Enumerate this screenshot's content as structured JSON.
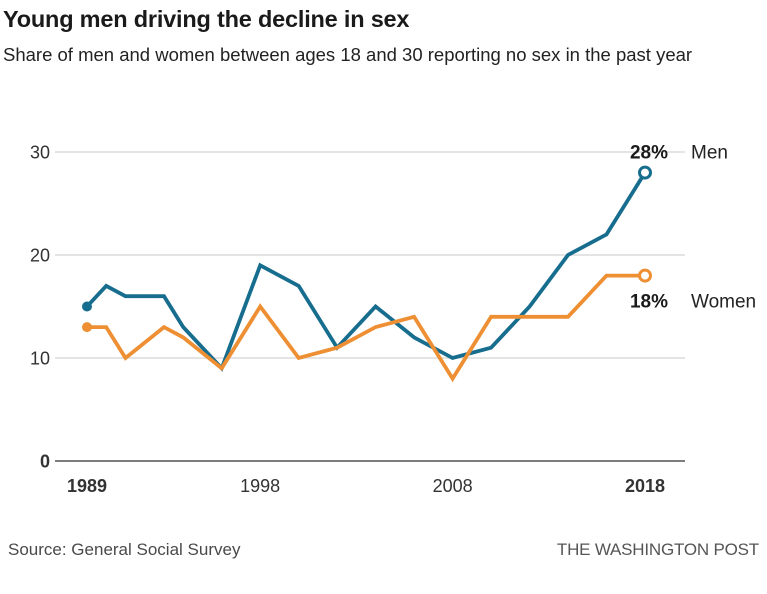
{
  "header": {
    "title": "Young men driving the decline in sex",
    "subtitle": "Share of men and women between ages 18 and 30 reporting no sex in the past year"
  },
  "chart_data": {
    "type": "line",
    "x": [
      1989,
      1990,
      1991,
      1993,
      1994,
      1996,
      1998,
      2000,
      2002,
      2004,
      2006,
      2008,
      2010,
      2012,
      2014,
      2016,
      2018
    ],
    "series": [
      {
        "name": "Men",
        "color": "#176d8e",
        "values": [
          15,
          17,
          16,
          16,
          13,
          9,
          19,
          17,
          11,
          15,
          12,
          10,
          11,
          15,
          20,
          22,
          28
        ],
        "end_label": "28%"
      },
      {
        "name": "Women",
        "color": "#ee8f33",
        "values": [
          13,
          13,
          10,
          13,
          12,
          9,
          15,
          10,
          11,
          13,
          14,
          8,
          14,
          14,
          14,
          18,
          18
        ],
        "end_label": "18%"
      }
    ],
    "title": "Young men driving the decline in sex",
    "xlabel": "",
    "ylabel": "",
    "ylim": [
      0,
      30
    ],
    "yticks": [
      0,
      10,
      20,
      30
    ],
    "xticks": [
      1989,
      1998,
      2008,
      2018
    ],
    "bold_xticks": [
      1989,
      2018
    ],
    "bold_yticks": [
      0
    ],
    "grid": true,
    "legend_position": "right of line ends",
    "start_markers": "filled dot",
    "end_markers": "open circle"
  },
  "colors": {
    "men": "#176d8e",
    "women": "#ee8f33",
    "gridline": "#dcdcdc",
    "axis": "#7d7d7d",
    "tick_text": "#333333",
    "annotation_text": "#1a1a1a",
    "series_label_text": "#222222"
  },
  "footer": {
    "source": "Source: General Social Survey",
    "credit": "THE WASHINGTON POST"
  }
}
